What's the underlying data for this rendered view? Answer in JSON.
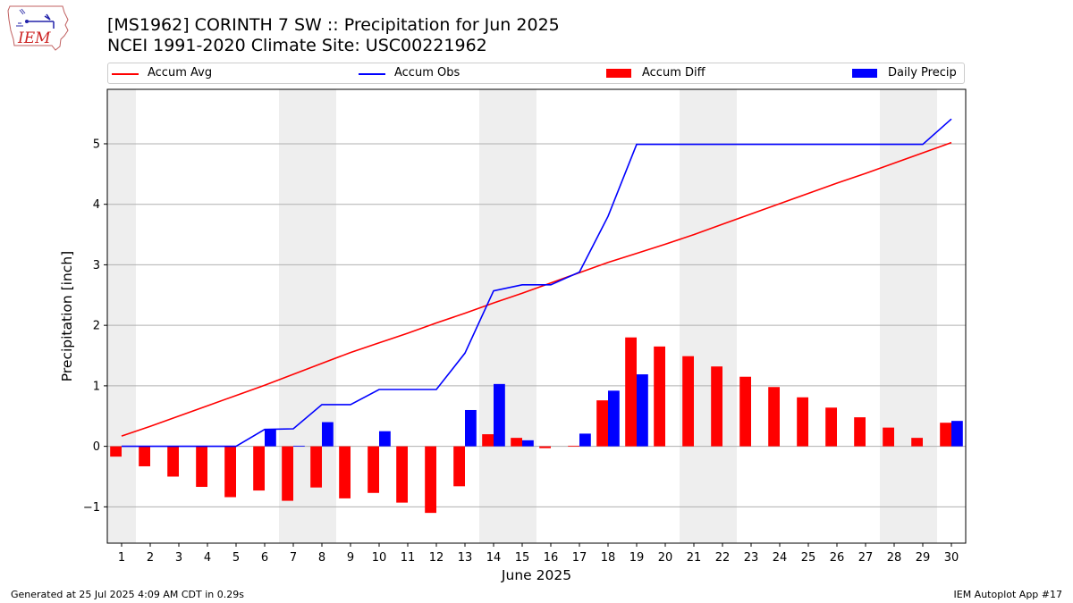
{
  "header": {
    "title_line1": "[MS1962] CORINTH 7 SW :: Precipitation for Jun 2025",
    "title_line2": "NCEI 1991-2020 Climate Site: USC00221962",
    "logo_text": "IEM"
  },
  "legend": {
    "accum_avg": "Accum Avg",
    "accum_obs": "Accum Obs",
    "accum_diff": "Accum Diff",
    "daily_precip": "Daily Precip"
  },
  "footer": {
    "generated": "Generated at 25 Jul 2025 4:09 AM CDT in 0.29s",
    "app": "IEM Autoplot App #17"
  },
  "colors": {
    "accum_avg": "#ff0000",
    "accum_obs": "#0000ff",
    "accum_diff": "#ff0000",
    "daily_precip": "#0000ff",
    "weekend_shade": "#eeeeee",
    "grid": "#b0b0b0"
  },
  "chart_data": {
    "type": "bar",
    "xlabel": "June 2025",
    "ylabel": "Precipitation [inch]",
    "ylim": [
      -1.6,
      5.9
    ],
    "yticks": [
      -1,
      0,
      1,
      2,
      3,
      4,
      5
    ],
    "ytick_labels": [
      "−1",
      "0",
      "1",
      "2",
      "3",
      "4",
      "5"
    ],
    "xlim": [
      0.5,
      30.5
    ],
    "grid": "horizontal",
    "legend_position": "top",
    "shaded_days": [
      1,
      7,
      8,
      14,
      15,
      21,
      22,
      28,
      29
    ],
    "days": [
      1,
      2,
      3,
      4,
      5,
      6,
      7,
      8,
      9,
      10,
      11,
      12,
      13,
      14,
      15,
      16,
      17,
      18,
      19,
      20,
      21,
      22,
      23,
      24,
      25,
      26,
      27,
      28,
      29,
      30
    ],
    "series": [
      {
        "name": "Accum Avg",
        "kind": "line",
        "values": [
          0.17,
          0.33,
          0.5,
          0.67,
          0.84,
          1.01,
          1.19,
          1.37,
          1.55,
          1.71,
          1.87,
          2.04,
          2.2,
          2.37,
          2.53,
          2.7,
          2.87,
          3.04,
          3.19,
          3.34,
          3.5,
          3.67,
          3.84,
          4.01,
          4.18,
          4.35,
          4.51,
          4.68,
          4.85,
          5.02
        ]
      },
      {
        "name": "Accum Obs",
        "kind": "line",
        "values": [
          0.0,
          0.0,
          0.0,
          0.0,
          0.0,
          0.28,
          0.29,
          0.69,
          0.69,
          0.94,
          0.94,
          0.94,
          1.54,
          2.57,
          2.67,
          2.67,
          2.88,
          3.8,
          4.99,
          4.99,
          4.99,
          4.99,
          4.99,
          4.99,
          4.99,
          4.99,
          4.99,
          4.99,
          4.99,
          5.41
        ]
      },
      {
        "name": "Accum Diff",
        "kind": "bar",
        "values": [
          -0.17,
          -0.33,
          -0.5,
          -0.67,
          -0.84,
          -0.73,
          -0.9,
          -0.68,
          -0.86,
          -0.77,
          -0.93,
          -1.1,
          -0.66,
          0.2,
          0.14,
          -0.03,
          0.01,
          0.76,
          1.8,
          1.65,
          1.49,
          1.32,
          1.15,
          0.98,
          0.81,
          0.64,
          0.48,
          0.31,
          0.14,
          0.39
        ]
      },
      {
        "name": "Daily Precip",
        "kind": "bar",
        "values": [
          0,
          0,
          0,
          0,
          0,
          0.28,
          0.01,
          0.4,
          0,
          0.25,
          0,
          0,
          0.6,
          1.03,
          0.1,
          0,
          0.21,
          0.92,
          1.19,
          0,
          0,
          0,
          0,
          0,
          0,
          0,
          0,
          0,
          0,
          0.42
        ]
      }
    ]
  }
}
